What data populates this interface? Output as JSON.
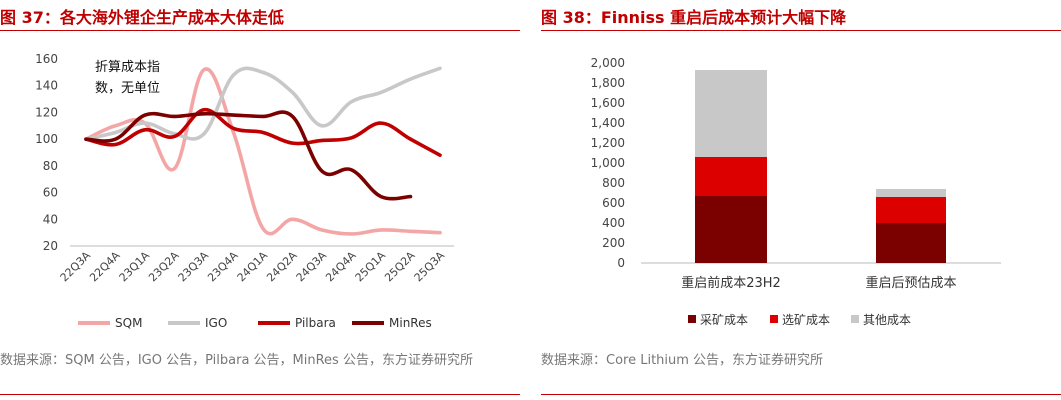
{
  "left": {
    "title": "图 37：各大海外锂企生产成本大体走低",
    "source": "数据来源：SQM 公告，IGO 公告，Pilbara 公告，MinRes 公告，东方证券研究所",
    "annotation_line1": "折算成本指",
    "annotation_line2": "数，无单位"
  },
  "right": {
    "title": "图 38：Finniss 重启后成本预计大幅下降",
    "source": "数据来源：Core Lithium 公告，东方证券研究所"
  },
  "chart_data": [
    {
      "type": "line",
      "title": "各大海外锂企生产成本大体走低",
      "categories": [
        "22Q3A",
        "22Q4A",
        "23Q1A",
        "23Q2A",
        "23Q3A",
        "23Q4A",
        "24Q1A",
        "24Q2A",
        "24Q3A",
        "24Q4A",
        "25Q1A",
        "25Q2A",
        "25Q3A"
      ],
      "yticks": [
        20,
        40,
        60,
        80,
        100,
        120,
        140,
        160
      ],
      "ylim": [
        20,
        160
      ],
      "ylabel": "折算成本指数，无单位",
      "series": [
        {
          "name": "SQM",
          "color": "#f4a6a6",
          "values": [
            100,
            110,
            112,
            78,
            152,
            105,
            33,
            40,
            32,
            29,
            32,
            31,
            30
          ]
        },
        {
          "name": "IGO",
          "color": "#c8c8c8",
          "values": [
            100,
            105,
            112,
            104,
            104,
            148,
            150,
            135,
            110,
            128,
            135,
            145,
            153
          ]
        },
        {
          "name": "Pilbara",
          "color": "#c00000",
          "values": [
            100,
            96,
            107,
            102,
            122,
            108,
            105,
            97,
            99,
            101,
            112,
            100,
            88
          ]
        },
        {
          "name": "MinRes",
          "color": "#7b0000",
          "values": [
            100,
            100,
            118,
            117,
            119,
            118,
            117,
            117,
            76,
            77,
            57,
            57,
            null
          ]
        }
      ]
    },
    {
      "type": "bar",
      "stacked": true,
      "title": "Finniss 重启后成本预计大幅下降",
      "categories": [
        "重启前成本23H2",
        "重启后预估成本"
      ],
      "yticks": [
        0,
        200,
        400,
        600,
        800,
        1000,
        1200,
        1400,
        1600,
        1800,
        2000
      ],
      "ytick_labels": [
        "0",
        "200",
        "400",
        "600",
        "800",
        "1,000",
        "1,200",
        "1,400",
        "1,600",
        "1,800",
        "2,000"
      ],
      "ylim": [
        0,
        2000
      ],
      "series": [
        {
          "name": "采矿成本",
          "color": "#7b0000",
          "values": [
            670,
            400
          ]
        },
        {
          "name": "选矿成本",
          "color": "#dd0000",
          "values": [
            390,
            260
          ]
        },
        {
          "name": "其他成本",
          "color": "#c8c8c8",
          "values": [
            870,
            80
          ]
        }
      ]
    }
  ]
}
